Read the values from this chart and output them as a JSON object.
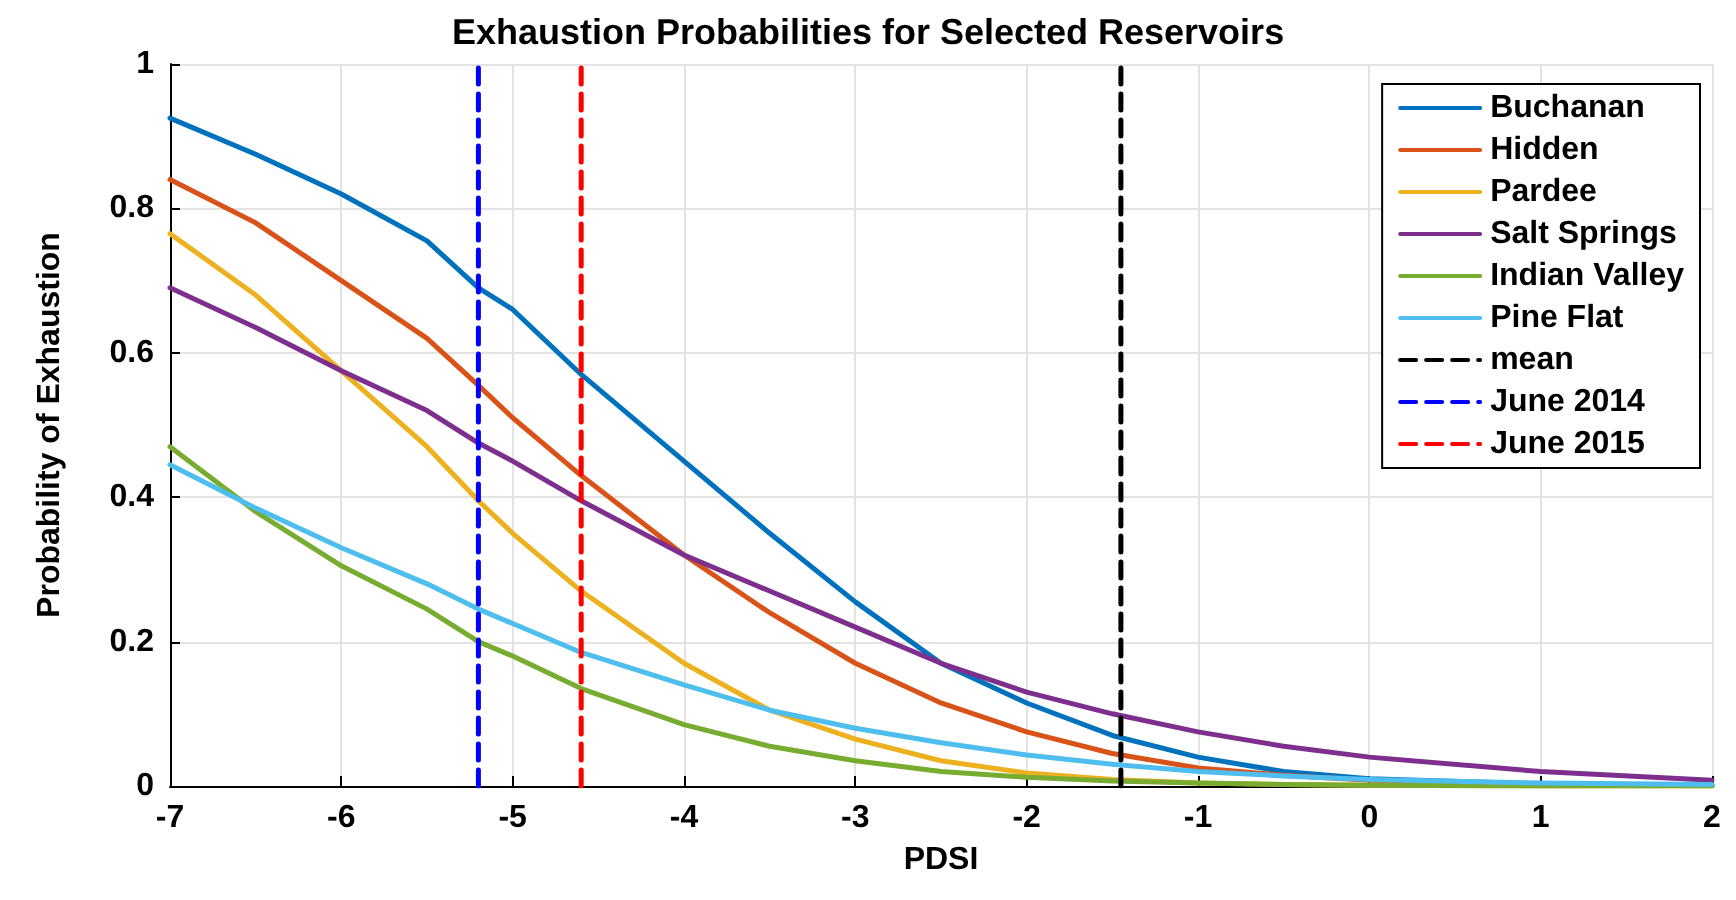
{
  "chart_data": {
    "type": "line",
    "title": "Exhaustion Probabilities for Selected Reservoirs",
    "xlabel": "PDSI",
    "ylabel": "Probability of Exhaustion",
    "x": [
      -7,
      -6.5,
      -6,
      -5.5,
      -5.2,
      -5,
      -4.6,
      -4,
      -3.5,
      -3,
      -2.5,
      -2,
      -1.5,
      -1,
      -0.5,
      0,
      1,
      2
    ],
    "series": [
      {
        "name": "Buchanan",
        "color": "#0072bd",
        "values": [
          0.925,
          0.875,
          0.82,
          0.755,
          0.69,
          0.66,
          0.57,
          0.45,
          0.35,
          0.255,
          0.17,
          0.115,
          0.07,
          0.04,
          0.02,
          0.01,
          0.003,
          0.001
        ]
      },
      {
        "name": "Hidden",
        "color": "#d95319",
        "values": [
          0.84,
          0.78,
          0.7,
          0.62,
          0.555,
          0.51,
          0.43,
          0.32,
          0.24,
          0.17,
          0.115,
          0.075,
          0.045,
          0.025,
          0.015,
          0.008,
          0.002,
          0.001
        ]
      },
      {
        "name": "Pardee",
        "color": "#edb120",
        "values": [
          0.765,
          0.68,
          0.575,
          0.47,
          0.395,
          0.35,
          0.27,
          0.17,
          0.105,
          0.065,
          0.035,
          0.018,
          0.009,
          0.004,
          0.002,
          0.001,
          0,
          0
        ]
      },
      {
        "name": "Salt Springs",
        "color": "#7e2f8e",
        "values": [
          0.69,
          0.635,
          0.575,
          0.52,
          0.475,
          0.45,
          0.395,
          0.32,
          0.27,
          0.22,
          0.17,
          0.13,
          0.1,
          0.075,
          0.055,
          0.04,
          0.02,
          0.008
        ]
      },
      {
        "name": "Indian Valley",
        "color": "#77ac30",
        "values": [
          0.47,
          0.38,
          0.305,
          0.245,
          0.2,
          0.18,
          0.135,
          0.085,
          0.055,
          0.035,
          0.02,
          0.012,
          0.007,
          0.004,
          0.002,
          0.001,
          0,
          0
        ]
      },
      {
        "name": "Pine Flat",
        "color": "#4dbeee",
        "values": [
          0.445,
          0.385,
          0.33,
          0.28,
          0.245,
          0.225,
          0.185,
          0.14,
          0.105,
          0.08,
          0.06,
          0.043,
          0.03,
          0.02,
          0.014,
          0.009,
          0.004,
          0.002
        ]
      },
      {
        "name": "mean",
        "color": "#000000",
        "line_style": "dashed",
        "x": [
          -1.45,
          -1.45
        ],
        "values": [
          0,
          1
        ]
      },
      {
        "name": "June 2014",
        "color": "#0000ff",
        "line_style": "dashed",
        "x": [
          -5.2,
          -5.2
        ],
        "values": [
          0,
          1
        ]
      },
      {
        "name": "June 2015",
        "color": "#ff0000",
        "line_style": "dashed",
        "x": [
          -4.6,
          -4.6
        ],
        "values": [
          0,
          1
        ]
      }
    ],
    "xlim": [
      -7,
      2
    ],
    "xticks": [
      -7,
      -6,
      -5,
      -4,
      -3,
      -2,
      -1,
      0,
      1,
      2
    ],
    "ylim": [
      0,
      1
    ],
    "yticks": [
      0,
      0.2,
      0.4,
      0.6,
      0.8,
      1
    ],
    "grid": true,
    "legend": "top right",
    "marker": "none",
    "line_style": "solid"
  }
}
